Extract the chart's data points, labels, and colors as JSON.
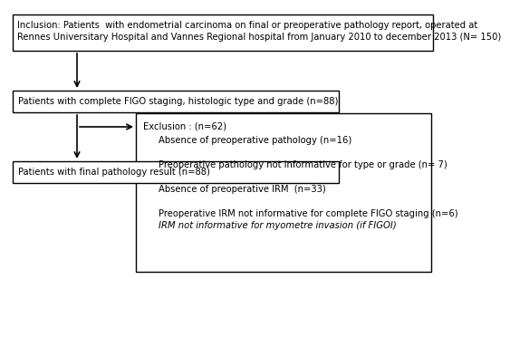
{
  "box1_text_line1": "Inclusion: Patients  with endometrial carcinoma on final or preoperative pathology report, operated at",
  "box1_text_line2": "Rennes Universitary Hospital and Vannes Regional hospital from January 2010 to december 2013 (N= 150)",
  "box2_title": "Exclusion : (n=62)",
  "box2_line1": "Absence of preoperative pathology (n=16)",
  "box2_line2": "Preoperative pathology not informative for type or grade (n= 7)",
  "box2_line3": "Absence of preoperative IRM  (n=33)",
  "box2_line4": "Preoperative IRM not informative for complete FIGO staging (n=6)",
  "box2_line5": "IRM not informative for myometre invasion (if FIGOI)",
  "box3_text": "Patients with complete FIGO staging, histologic type and grade (n=88)",
  "box4_text": "Patients with final pathology result (n=88)",
  "bg_color": "#ffffff",
  "box_edge_color": "#000000",
  "text_color": "#000000",
  "font_size": 7.2
}
